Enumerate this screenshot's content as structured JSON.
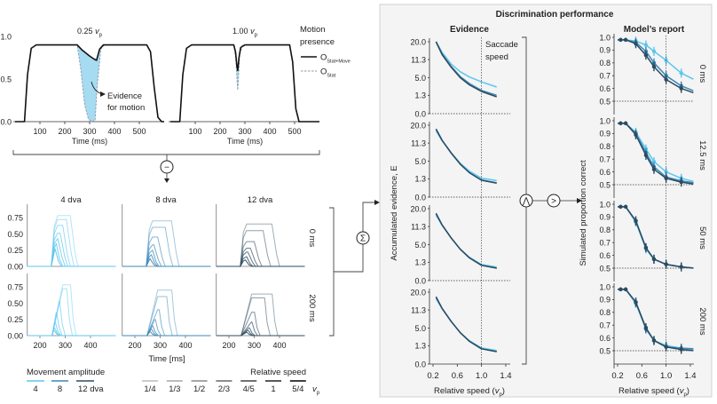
{
  "colors": {
    "amp_4": "#5cc6ef",
    "amp_8": "#3a88b8",
    "amp_12": "#2d4b60",
    "evidence_fill": "#a6dbf2",
    "panel_bg": "#f4f4f4"
  },
  "operators": {
    "subtract": "−",
    "sum": "Σ",
    "min": "⋀",
    "max": ">"
  },
  "chart_data": [
    {
      "type": "line",
      "panels": [
        {
          "title": "0.25",
          "stat_move": {
            "t": [
              0,
              38,
              50,
              65,
              85,
              250,
              270,
              300,
              320,
              328,
              340,
              355,
              530,
              545,
              560,
              575,
              590,
              600
            ],
            "y": [
              0,
              0,
              0.55,
              0.86,
              0.9,
              0.9,
              0.84,
              0.77,
              0.73,
              0.72,
              0.85,
              0.9,
              0.9,
              0.82,
              0.4,
              0.05,
              0,
              0
            ]
          },
          "stat": {
            "t": [
              0,
              38,
              50,
              65,
              85,
              250,
              265,
              280,
              295,
              310,
              322,
              330,
              345,
              360,
              530,
              545,
              560,
              575,
              590,
              600
            ],
            "y": [
              0,
              0,
              0.55,
              0.86,
              0.9,
              0.9,
              0.6,
              0.2,
              0.03,
              0,
              0.02,
              0.4,
              0.85,
              0.9,
              0.9,
              0.82,
              0.4,
              0.05,
              0,
              0
            ]
          }
        },
        {
          "title": "1.00",
          "stat_move": {
            "t": [
              0,
              38,
              50,
              65,
              85,
              255,
              262,
              268,
              271,
              276,
              283,
              300,
              480,
              492,
              505,
              518,
              600
            ],
            "y": [
              0,
              0,
              0.55,
              0.86,
              0.9,
              0.9,
              0.82,
              0.65,
              0.6,
              0.75,
              0.87,
              0.9,
              0.9,
              0.7,
              0.15,
              0,
              0
            ]
          },
          "stat": {
            "t": [
              0,
              38,
              50,
              65,
              85,
              255,
              263,
              269,
              271,
              273,
              279,
              290,
              480,
              492,
              505,
              518,
              600
            ],
            "y": [
              0,
              0,
              0.55,
              0.86,
              0.9,
              0.9,
              0.75,
              0.45,
              0.37,
              0.45,
              0.78,
              0.9,
              0.9,
              0.7,
              0.15,
              0,
              0
            ]
          }
        }
      ],
      "title_symbol": "v",
      "title_subscript": "p",
      "xlabel": "Time (ms)",
      "x_ticks": [
        "100",
        "200",
        "300",
        "400",
        "500"
      ],
      "y_ticks": [
        "0.0",
        "0.5",
        "1.0"
      ],
      "xlim": [
        0,
        600
      ],
      "ylim": [
        0,
        1
      ],
      "legend": {
        "title": [
          "Motion",
          "presence"
        ],
        "items": [
          {
            "name": "O",
            "sub": "Stat+Move",
            "style": "solid"
          },
          {
            "name": "O",
            "sub": "Stat",
            "style": "dashed"
          }
        ]
      },
      "annotation": [
        "Evidence",
        "for motion"
      ]
    },
    {
      "type": "line",
      "columns": [
        "4 dva",
        "8 dva",
        "12 dva"
      ],
      "rows": [
        "0 ms",
        "200 ms"
      ],
      "xlabel": "Time [ms]",
      "x_ticks": [
        "200",
        "300",
        "400"
      ],
      "y_ticks": [
        "0.00",
        "0.25",
        "0.50",
        "0.75"
      ],
      "xlim": [
        150,
        500
      ],
      "ylim": [
        0,
        0.8
      ],
      "onset_ms": 245,
      "speeds": [
        "1/4",
        "1/3",
        "1/2",
        "2/3",
        "4/5",
        "1",
        "5/4"
      ],
      "traces": [
        [
          {
            "peaks": [
              0.78,
              0.72,
              0.63,
              0.51,
              0.43,
              0.35,
              0.27
            ],
            "offsets_ms": [
              330,
              315,
              300,
              290,
              280,
              270,
              265
            ]
          },
          {
            "peaks": [
              0.7,
              0.6,
              0.45,
              0.33,
              0.25,
              0.18,
              0.12
            ],
            "offsets_ms": [
              355,
              330,
              300,
              285,
              275,
              270,
              265
            ]
          },
          {
            "peaks": [
              0.65,
              0.55,
              0.38,
              0.28,
              0.22,
              0.15,
              0.1
            ],
            "offsets_ms": [
              380,
              345,
              310,
              295,
              285,
              275,
              270
            ]
          }
        ],
        [
          {
            "peaks": [
              0.78,
              0.72,
              0.53,
              0.35,
              0.2,
              0.12,
              0.08
            ],
            "offsets_ms": [
              325,
              310,
              282,
              270,
              265,
              262,
              260
            ]
          },
          {
            "peaks": [
              0.7,
              0.6,
              0.4,
              0.25,
              0.15,
              0.1,
              0.06
            ],
            "offsets_ms": [
              350,
              330,
              300,
              285,
              275,
              270,
              265
            ]
          },
          {
            "peaks": [
              0.64,
              0.58,
              0.36,
              0.21,
              0.12,
              0.08,
              0.05
            ],
            "offsets_ms": [
              375,
              345,
              305,
              295,
              285,
              280,
              275
            ]
          }
        ]
      ],
      "legend": {
        "amplitude_title": "Movement amplitude",
        "amplitude_labels": [
          "4",
          "8",
          "12 dva"
        ],
        "speed_title": "Relative speed",
        "speed_labels": [
          "1/4",
          "1/3",
          "1/2",
          "2/3",
          "4/5",
          "1",
          "5/4"
        ],
        "speed_symbol": "v",
        "speed_subscript": "p"
      }
    },
    {
      "type": "line",
      "panel_title": "Discrimination performance",
      "title": "Evidence",
      "ylabel": "Accumulated evidence, E",
      "xlabel": "Relative speed (",
      "xlabel_symbol": "v",
      "xlabel_subscript": "p",
      "xlabel_end": ")",
      "y_ticks": [
        "0.0",
        "1.3",
        "5.0",
        "11.3",
        "20.0"
      ],
      "yscale": "sqrt",
      "x_ticks": [
        "0.2",
        "0.6",
        "1.0",
        "1.4"
      ],
      "xlim": [
        0.2,
        1.4
      ],
      "ylim": [
        0,
        20
      ],
      "vline": 1.0,
      "annotation": [
        "Saccade",
        "speed"
      ],
      "x": [
        0.25,
        0.35,
        0.5,
        0.65,
        0.8,
        1.0,
        1.25
      ],
      "rows": [
        {
          "series": [
            {
              "amplitude": "4",
              "values": [
                20,
                14.5,
                9.5,
                6.8,
                5.2,
                3.9,
                2.75
              ]
            },
            {
              "amplitude": "8",
              "values": [
                20,
                13.8,
                8.6,
                5.3,
                3.5,
                2.1,
                1.3
              ]
            },
            {
              "amplitude": "12",
              "values": [
                20,
                13.5,
                8.3,
                5.0,
                3.2,
                1.9,
                1.1
              ]
            }
          ]
        },
        {
          "series": [
            {
              "amplitude": "4",
              "values": [
                17,
                12.3,
                7.6,
                4.4,
                2.6,
                1.4,
                1.05
              ]
            },
            {
              "amplitude": "8",
              "values": [
                17.8,
                12.5,
                7.5,
                4.2,
                2.3,
                1.15,
                0.8
              ]
            },
            {
              "amplitude": "12",
              "values": [
                18,
                12.5,
                7.5,
                4.2,
                2.3,
                1.1,
                0.75
              ]
            }
          ]
        },
        {
          "series": [
            {
              "amplitude": "4",
              "values": [
                16.5,
                11.8,
                7.0,
                3.8,
                2.1,
                1.0,
                0.7
              ]
            },
            {
              "amplitude": "8",
              "values": [
                17.2,
                12,
                7.0,
                3.8,
                2.0,
                0.9,
                0.6
              ]
            },
            {
              "amplitude": "12",
              "values": [
                17.5,
                12,
                7.0,
                3.8,
                2.0,
                0.9,
                0.6
              ]
            }
          ]
        },
        {
          "series": [
            {
              "amplitude": "4",
              "values": [
                16.5,
                11.8,
                7.0,
                3.8,
                2.1,
                1.0,
                0.7
              ]
            },
            {
              "amplitude": "8",
              "values": [
                17.2,
                12,
                7.0,
                3.8,
                2.0,
                0.9,
                0.6
              ]
            },
            {
              "amplitude": "12",
              "values": [
                17.5,
                12,
                7.0,
                3.8,
                2.0,
                0.9,
                0.6
              ]
            }
          ]
        }
      ]
    },
    {
      "type": "scatter",
      "title": "Model’s report",
      "ylabel": "Simulated proportion correct",
      "xlabel": "Relative speed (",
      "xlabel_symbol": "v",
      "xlabel_subscript": "p",
      "xlabel_end": ")",
      "y_ticks": [
        "0.5",
        "0.6",
        "0.7",
        "0.8",
        "0.9",
        "1.0"
      ],
      "x_ticks": [
        "0.2",
        "0.6",
        "1.0",
        "1.4"
      ],
      "xlim": [
        0.2,
        1.45
      ],
      "ylim": [
        0.5,
        1.0
      ],
      "chance_line": 0.5,
      "vline": 1.0,
      "x": [
        0.25,
        0.333,
        0.5,
        0.667,
        0.8,
        1.0,
        1.25
      ],
      "rows": [
        {
          "label": "0 ms",
          "series": [
            {
              "amplitude": "4",
              "values": [
                0.98,
                0.98,
                0.97,
                0.94,
                0.89,
                0.82,
                0.72
              ]
            },
            {
              "amplitude": "8",
              "values": [
                0.98,
                0.98,
                0.96,
                0.89,
                0.8,
                0.7,
                0.62
              ]
            },
            {
              "amplitude": "12",
              "values": [
                0.98,
                0.98,
                0.95,
                0.86,
                0.77,
                0.67,
                0.6
              ]
            }
          ]
        },
        {
          "label": "12.5 ms",
          "series": [
            {
              "amplitude": "4",
              "values": [
                0.98,
                0.98,
                0.91,
                0.78,
                0.68,
                0.6,
                0.55
              ]
            },
            {
              "amplitude": "8",
              "values": [
                0.98,
                0.98,
                0.9,
                0.75,
                0.64,
                0.56,
                0.53
              ]
            },
            {
              "amplitude": "12",
              "values": [
                0.98,
                0.98,
                0.89,
                0.73,
                0.62,
                0.55,
                0.52
              ]
            }
          ]
        },
        {
          "label": "50 ms",
          "series": [
            {
              "amplitude": "4",
              "values": [
                0.98,
                0.98,
                0.86,
                0.65,
                0.57,
                0.53,
                0.51
              ]
            },
            {
              "amplitude": "8",
              "values": [
                0.98,
                0.98,
                0.87,
                0.66,
                0.57,
                0.53,
                0.51
              ]
            },
            {
              "amplitude": "12",
              "values": [
                0.98,
                0.98,
                0.87,
                0.66,
                0.57,
                0.53,
                0.51
              ]
            }
          ]
        },
        {
          "label": "200 ms",
          "series": [
            {
              "amplitude": "4",
              "values": [
                0.98,
                0.98,
                0.87,
                0.67,
                0.58,
                0.54,
                0.52
              ]
            },
            {
              "amplitude": "8",
              "values": [
                0.98,
                0.98,
                0.88,
                0.67,
                0.58,
                0.53,
                0.52
              ]
            },
            {
              "amplitude": "12",
              "values": [
                0.98,
                0.98,
                0.88,
                0.68,
                0.58,
                0.53,
                0.51
              ]
            }
          ]
        }
      ]
    }
  ]
}
